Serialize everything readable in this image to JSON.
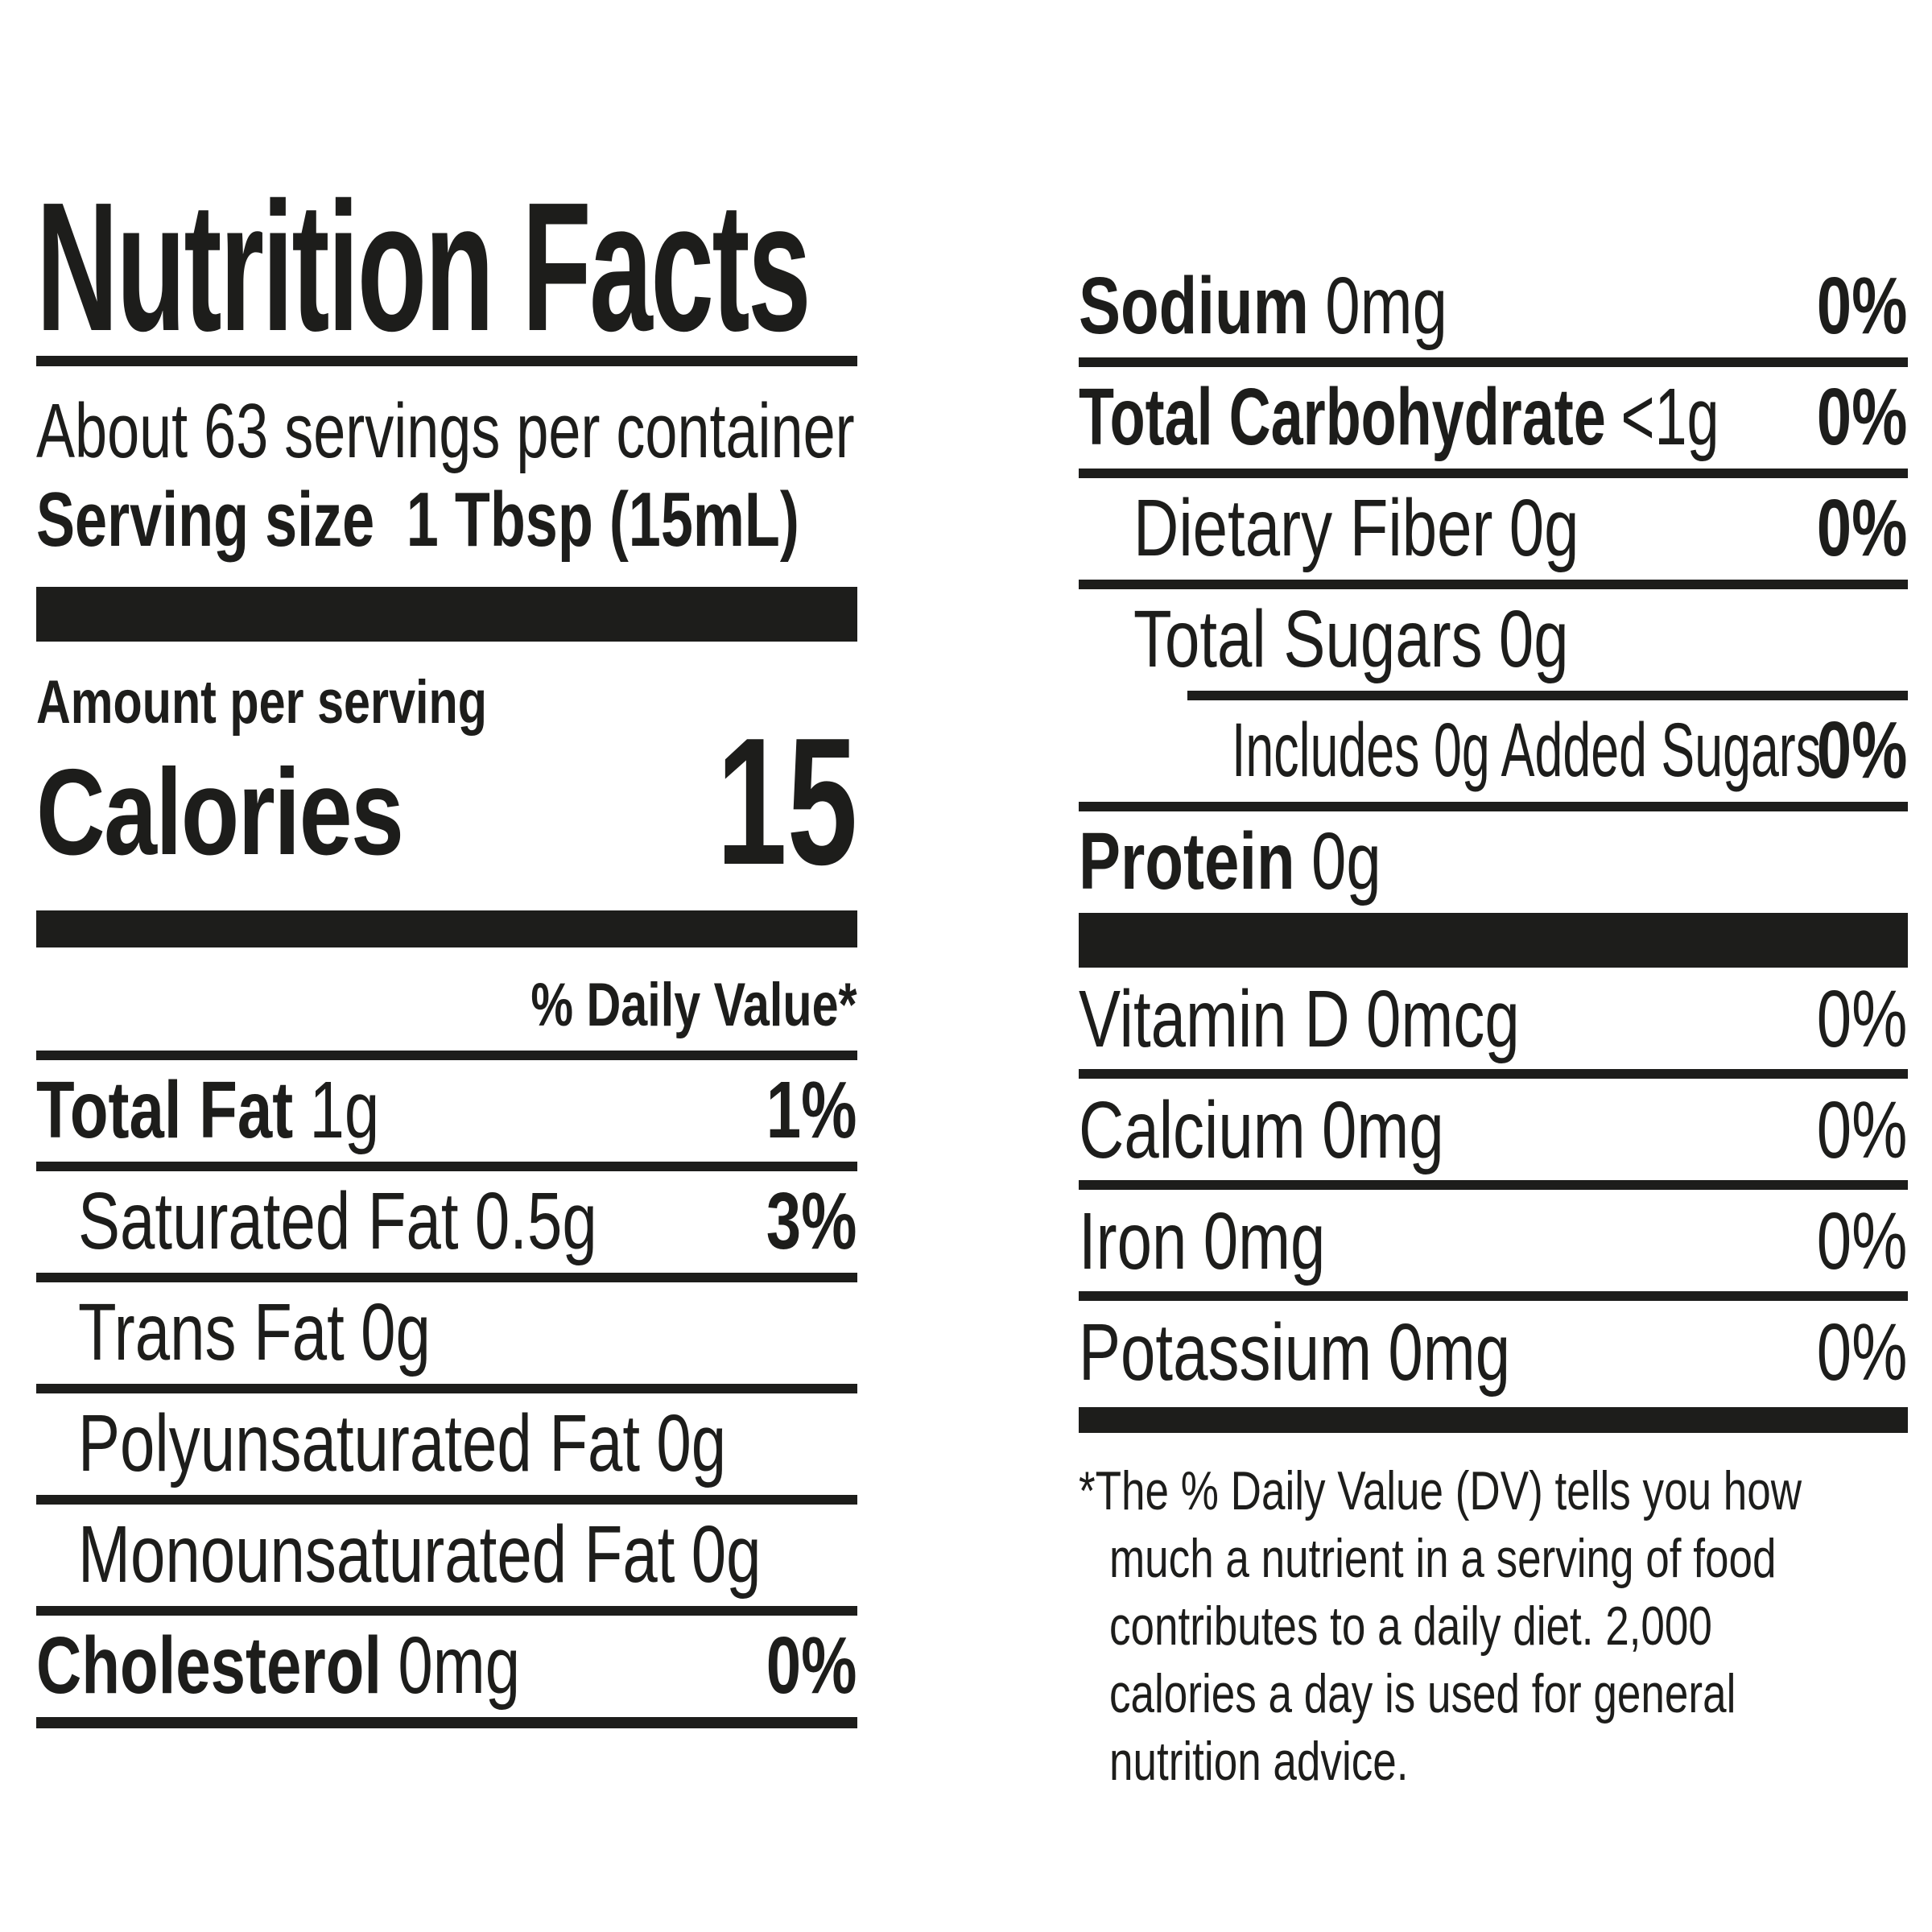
{
  "colors": {
    "ink": "#1d1d1b",
    "background": "#ffffff"
  },
  "label": {
    "title": "Nutrition Facts",
    "servings_per_container": "About 63 servings per container",
    "serving_size_label": "Serving size",
    "serving_size_value": "1 Tbsp (15mL)",
    "amount_per_serving": "Amount per serving",
    "calories_label": "Calories",
    "calories_value": "15",
    "daily_value_header": "% Daily Value*",
    "left_rows": [
      {
        "name": "Total Fat",
        "amount": "1g",
        "dv": "1%"
      },
      {
        "name": "Saturated Fat",
        "amount": "0.5g",
        "dv": "3%"
      },
      {
        "name": "Trans Fat",
        "amount": "0g",
        "dv": ""
      },
      {
        "name": "Polyunsaturated Fat",
        "amount": "0g",
        "dv": ""
      },
      {
        "name": "Monounsaturated Fat",
        "amount": "0g",
        "dv": ""
      },
      {
        "name": "Cholesterol",
        "amount": "0mg",
        "dv": "0%"
      }
    ],
    "right_rows": [
      {
        "name": "Sodium",
        "amount": "0mg",
        "dv": "0%"
      },
      {
        "name": "Total Carbohydrate",
        "amount": "<1g",
        "dv": "0%"
      },
      {
        "name": "Dietary Fiber",
        "amount": "0g",
        "dv": "0%"
      },
      {
        "name": "Total Sugars",
        "amount": "0g",
        "dv": ""
      },
      {
        "name": "Includes 0g Added Sugars",
        "amount": "",
        "dv": "0%"
      },
      {
        "name": "Protein",
        "amount": "0g",
        "dv": ""
      }
    ],
    "vitamin_rows": [
      {
        "name": "Vitamin D",
        "amount": "0mcg",
        "dv": "0%"
      },
      {
        "name": "Calcium",
        "amount": "0mg",
        "dv": "0%"
      },
      {
        "name": "Iron",
        "amount": "0mg",
        "dv": "0%"
      },
      {
        "name": "Potassium",
        "amount": "0mg",
        "dv": "0%"
      }
    ],
    "footnote_lines": [
      "*The % Daily Value (DV) tells you how",
      "much a nutrient in a serving of food",
      "contributes to a daily diet. 2,000",
      "calories a day is used for general",
      "nutrition advice."
    ]
  }
}
